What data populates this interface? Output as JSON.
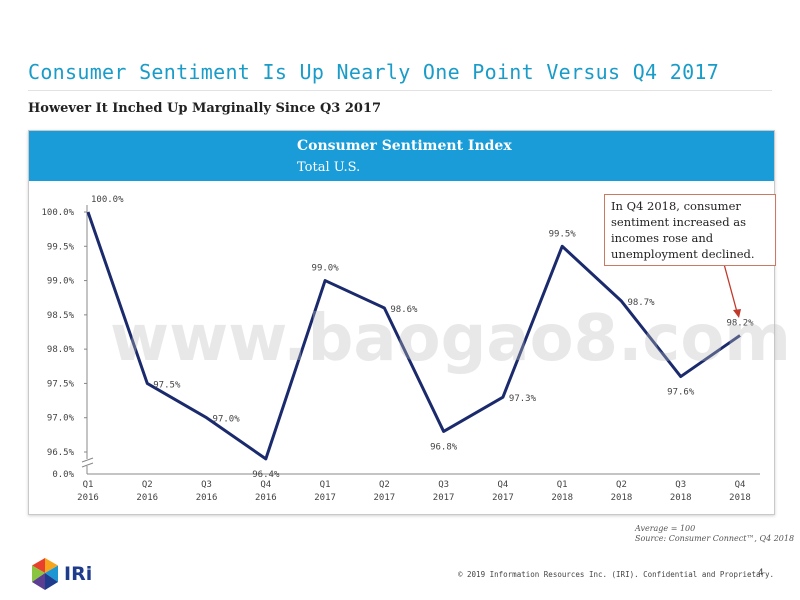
{
  "page": {
    "title": "Consumer Sentiment Is Up Nearly One Point Versus Q4 2017",
    "subtitle": "However It Inched Up Marginally Since Q3 2017",
    "watermark": "www.baogao8.com",
    "source_line1": "Average = 100",
    "source_line2": "Source: Consumer Connect™, Q4 2018",
    "footer": "© 2019 Information Resources Inc. (IRI). Confidential and Proprietary.",
    "page_number": "4",
    "logo_text": "IRi"
  },
  "callout": {
    "text": "In Q4 2018, consumer sentiment increased as incomes rose and unemployment declined.",
    "border_color": "#c97a63",
    "arrow_color": "#c0392b"
  },
  "colors": {
    "title": "#1a9cc9",
    "header_band": "#1a9cd8",
    "line": "#1a2a6c"
  },
  "chart_data": {
    "type": "line",
    "title": "Consumer Sentiment Index",
    "subtitle": "Total U.S.",
    "categories": [
      "Q1 2016",
      "Q2 2016",
      "Q3 2016",
      "Q4 2016",
      "Q1 2017",
      "Q2 2017",
      "Q3 2017",
      "Q4 2017",
      "Q1 2018",
      "Q2 2018",
      "Q3 2018",
      "Q4 2018"
    ],
    "x_ticks": [
      [
        "Q1",
        "2016"
      ],
      [
        "Q2",
        "2016"
      ],
      [
        "Q3",
        "2016"
      ],
      [
        "Q4",
        "2016"
      ],
      [
        "Q1",
        "2017"
      ],
      [
        "Q2",
        "2017"
      ],
      [
        "Q3",
        "2017"
      ],
      [
        "Q4",
        "2017"
      ],
      [
        "Q1",
        "2018"
      ],
      [
        "Q2",
        "2018"
      ],
      [
        "Q3",
        "2018"
      ],
      [
        "Q4",
        "2018"
      ]
    ],
    "values": [
      100.0,
      97.5,
      97.0,
      96.4,
      99.0,
      98.6,
      96.8,
      97.3,
      99.5,
      98.7,
      97.6,
      98.2
    ],
    "data_labels": [
      "100.0%",
      "97.5%",
      "97.0%",
      "96.4%",
      "99.0%",
      "98.6%",
      "96.8%",
      "97.3%",
      "99.5%",
      "98.7%",
      "97.6%",
      "98.2%"
    ],
    "y_ticks": [
      100.0,
      99.5,
      99.0,
      98.5,
      98.0,
      97.5,
      97.0,
      96.5
    ],
    "y_tick_labels": [
      "100.0%",
      "99.5%",
      "99.0%",
      "98.5%",
      "98.0%",
      "97.5%",
      "97.0%",
      "96.5%"
    ],
    "y_zero_label": "0.0%",
    "axis_break": true,
    "ylim": [
      96.3,
      100.0
    ],
    "grid": false,
    "legend": false,
    "xlabel": "",
    "ylabel": ""
  }
}
